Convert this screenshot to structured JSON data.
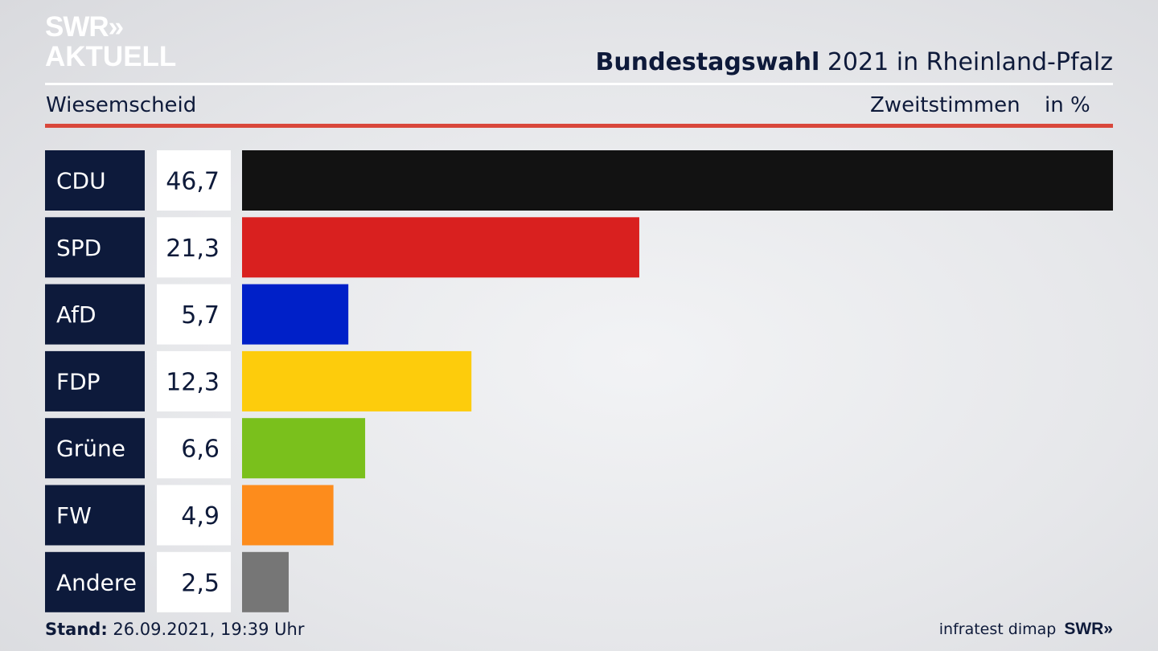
{
  "brand": {
    "logo_line1": "SWR»",
    "logo_line2": "AKTUELL",
    "footer_logo": "SWR»"
  },
  "header": {
    "title_bold": "Bundestagswahl",
    "title_rest": " 2021 in Rheinland-Pfalz",
    "region": "Wiesemscheid",
    "metric": "Zweitstimmen",
    "unit": "in %"
  },
  "footer": {
    "stand_label": "Stand:",
    "stand_value": " 26.09.2021, 19:39 Uhr",
    "source": "infratest dimap"
  },
  "chart_data": {
    "type": "bar",
    "orientation": "horizontal",
    "categories": [
      "CDU",
      "SPD",
      "AfD",
      "FDP",
      "Grüne",
      "FW",
      "Andere"
    ],
    "values": [
      46.7,
      21.3,
      5.7,
      12.3,
      6.6,
      4.9,
      2.5
    ],
    "value_labels": [
      "46,7",
      "21,3",
      "5,7",
      "12,3",
      "6,6",
      "4,9",
      "2,5"
    ],
    "colors": [
      "#121212",
      "#d9201f",
      "#0020c8",
      "#fdcc0c",
      "#7ac01c",
      "#fd8c1c",
      "#767676"
    ],
    "xlim": [
      0,
      46.7
    ],
    "grid": false,
    "legend": "none"
  }
}
